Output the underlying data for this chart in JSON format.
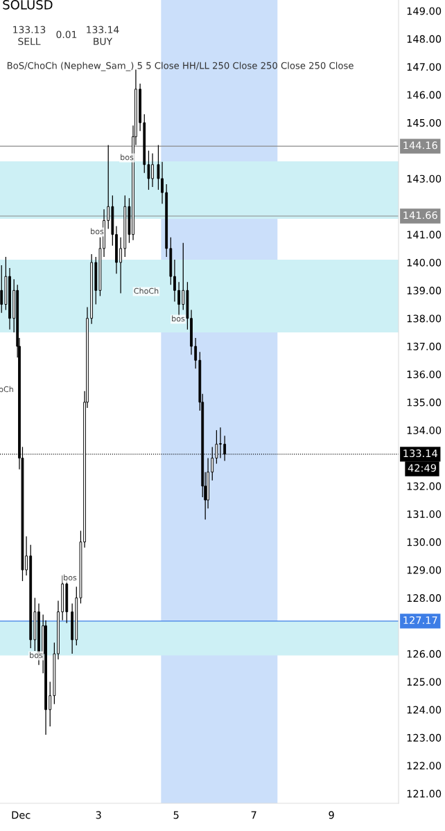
{
  "chart_data": {
    "type": "candlestick",
    "title": "SOLUSD",
    "subtitle": "BoS/ChoCh (Nephew_Sam_) 5 5 Close HH/LL 250 Close 250 Close 250 Close",
    "color": "#000000",
    "x": [
      0.5,
      0.61,
      0.71,
      0.82,
      0.91,
      0.96,
      1.04,
      1.14,
      1.25,
      1.36,
      1.46,
      1.57,
      1.64,
      1.75,
      1.86,
      1.96,
      2.07,
      2.18,
      2.32,
      2.43,
      2.54,
      2.64,
      2.71,
      2.82,
      2.93,
      3.04,
      3.14,
      3.25,
      3.36,
      3.46,
      3.57,
      3.68,
      3.79,
      3.89,
      3.96,
      4.07,
      4.18,
      4.29,
      4.39,
      4.54,
      4.64,
      4.75,
      4.86,
      4.96,
      5.07,
      5.18,
      5.29,
      5.39,
      5.5,
      5.61,
      5.68,
      5.75,
      5.82,
      5.93,
      6.04,
      6.14,
      6.25
    ],
    "ohlc": [
      [
        139.0,
        139.9,
        138.2,
        138.5
      ],
      [
        138.5,
        140.2,
        138.3,
        139.5
      ],
      [
        139.5,
        139.8,
        137.6,
        138.0
      ],
      [
        138.0,
        139.4,
        137.5,
        139.0
      ],
      [
        139.0,
        139.2,
        136.6,
        137.0
      ],
      [
        137.0,
        137.3,
        132.6,
        133.0
      ],
      [
        133.0,
        133.4,
        128.6,
        129.0
      ],
      [
        129.0,
        130.2,
        128.8,
        129.5
      ],
      [
        129.5,
        129.9,
        126.2,
        126.5
      ],
      [
        126.5,
        128.0,
        126.1,
        127.5
      ],
      [
        127.5,
        127.8,
        125.6,
        126.0
      ],
      [
        126.0,
        127.4,
        125.3,
        127.0
      ],
      [
        127.0,
        127.2,
        123.1,
        124.0
      ],
      [
        124.0,
        125.0,
        123.4,
        124.5
      ],
      [
        124.5,
        126.4,
        124.2,
        126.0
      ],
      [
        126.0,
        127.9,
        125.8,
        127.5
      ],
      [
        127.5,
        128.8,
        127.2,
        128.5
      ],
      [
        128.5,
        128.7,
        127.1,
        127.5
      ],
      [
        127.5,
        127.8,
        126.0,
        126.5
      ],
      [
        126.5,
        128.4,
        126.3,
        128.0
      ],
      [
        128.0,
        130.4,
        127.8,
        130.0
      ],
      [
        130.0,
        135.4,
        129.8,
        135.0
      ],
      [
        135.0,
        138.4,
        134.8,
        138.0
      ],
      [
        138.0,
        140.3,
        137.8,
        140.0
      ],
      [
        140.0,
        140.2,
        138.5,
        139.0
      ],
      [
        139.0,
        140.9,
        138.8,
        140.5
      ],
      [
        140.5,
        141.9,
        140.2,
        141.5
      ],
      [
        141.5,
        144.2,
        141.2,
        142.0
      ],
      [
        142.0,
        142.4,
        140.6,
        141.0
      ],
      [
        141.0,
        141.3,
        139.6,
        140.0
      ],
      [
        140.0,
        140.9,
        138.9,
        140.5
      ],
      [
        140.5,
        142.4,
        140.2,
        142.0
      ],
      [
        142.0,
        142.3,
        140.7,
        141.0
      ],
      [
        141.0,
        144.9,
        140.8,
        144.5
      ],
      [
        144.5,
        146.9,
        144.2,
        146.2
      ],
      [
        146.2,
        146.4,
        144.7,
        145.0
      ],
      [
        145.0,
        145.3,
        143.2,
        143.5
      ],
      [
        143.5,
        144.0,
        142.6,
        143.0
      ],
      [
        143.0,
        143.9,
        142.7,
        143.5
      ],
      [
        143.5,
        144.2,
        142.6,
        143.0
      ],
      [
        143.0,
        143.6,
        142.1,
        142.5
      ],
      [
        142.5,
        142.8,
        140.2,
        140.5
      ],
      [
        140.5,
        140.9,
        139.2,
        139.5
      ],
      [
        139.5,
        140.1,
        138.6,
        139.0
      ],
      [
        139.0,
        139.3,
        138.1,
        138.5
      ],
      [
        138.5,
        140.7,
        138.3,
        139.0
      ],
      [
        139.0,
        139.3,
        137.6,
        138.0
      ],
      [
        138.0,
        138.3,
        136.7,
        137.0
      ],
      [
        137.0,
        137.3,
        136.2,
        136.5
      ],
      [
        136.5,
        136.8,
        134.7,
        135.0
      ],
      [
        135.0,
        135.3,
        131.6,
        132.0
      ],
      [
        132.0,
        132.5,
        130.8,
        131.5
      ],
      [
        131.5,
        133.0,
        131.2,
        132.5
      ],
      [
        132.5,
        133.4,
        132.2,
        133.0
      ],
      [
        133.0,
        134.0,
        132.8,
        133.5
      ],
      [
        133.5,
        134.1,
        133.0,
        133.5
      ],
      [
        133.5,
        133.8,
        132.9,
        133.14
      ]
    ],
    "xlim": [
      0.46,
      10.73
    ],
    "xticks": [
      {
        "value": 1,
        "label": "Dec"
      },
      3,
      5,
      7,
      9
    ],
    "ylim": [
      120.65,
      149.39
    ],
    "yticks": [
      {
        "value": 121,
        "label": "121.00"
      },
      {
        "value": 122,
        "label": "122.00"
      },
      {
        "value": 123,
        "label": "123.00"
      },
      {
        "value": 124,
        "label": "124.00"
      },
      {
        "value": 125,
        "label": "125.00"
      },
      {
        "value": 126,
        "label": "126.00"
      },
      {
        "value": 128,
        "label": "128.00"
      },
      {
        "value": 129,
        "label": "129.00"
      },
      {
        "value": 130,
        "label": "130.00"
      },
      {
        "value": 131,
        "label": "131.00"
      },
      {
        "value": 132,
        "label": "132.00"
      },
      {
        "value": 134,
        "label": "134.00"
      },
      {
        "value": 135,
        "label": "135.00"
      },
      {
        "value": 136,
        "label": "136.00"
      },
      {
        "value": 137,
        "label": "137.00"
      },
      {
        "value": 138,
        "label": "138.00"
      },
      {
        "value": 139,
        "label": "139.00"
      },
      {
        "value": 140,
        "label": "140.00"
      },
      {
        "value": 141,
        "label": "141.00"
      },
      {
        "value": 143,
        "label": "143.00"
      },
      {
        "value": 145,
        "label": "145.00"
      },
      {
        "value": 146,
        "label": "146.00"
      },
      {
        "value": 147,
        "label": "147.00"
      },
      {
        "value": 148,
        "label": "148.00"
      },
      {
        "value": 149,
        "label": "149.00"
      }
    ],
    "bands": [
      {
        "axis": "y",
        "from": 141.56,
        "to": 143.62,
        "color": "#cdf0f5"
      },
      {
        "axis": "y",
        "from": 137.5,
        "to": 140.1,
        "color": "#cdf0f5"
      },
      {
        "axis": "y",
        "from": 125.94,
        "to": 127.17,
        "color": "#cdf0f5"
      },
      {
        "axis": "x",
        "from": 4.61,
        "to": 7.61,
        "color": "#c5dcfa"
      }
    ],
    "ref_lines": [
      {
        "axis": "y",
        "value": 133.14,
        "label": "133.14",
        "color": "#000000",
        "line_style": "dotted"
      },
      {
        "axis": "y",
        "value": 144.16,
        "label": "144.16",
        "color": "#8a8a8a",
        "line_style": "solid"
      },
      {
        "axis": "y",
        "value": 141.66,
        "label": "141.66",
        "color": "#8a8a8a",
        "line_style": "solid"
      },
      {
        "axis": "y",
        "value": 127.17,
        "label": "127.17",
        "color": "#3d7de6",
        "line_style": "solid"
      }
    ],
    "annotations": [
      "133.13",
      "SELL",
      "0.01",
      "133.14",
      "BUY",
      "42:49",
      "bos",
      "bos",
      "ChoCh",
      "bos",
      "oCh",
      "bos",
      "bos"
    ],
    "grid": false,
    "legend": false
  }
}
